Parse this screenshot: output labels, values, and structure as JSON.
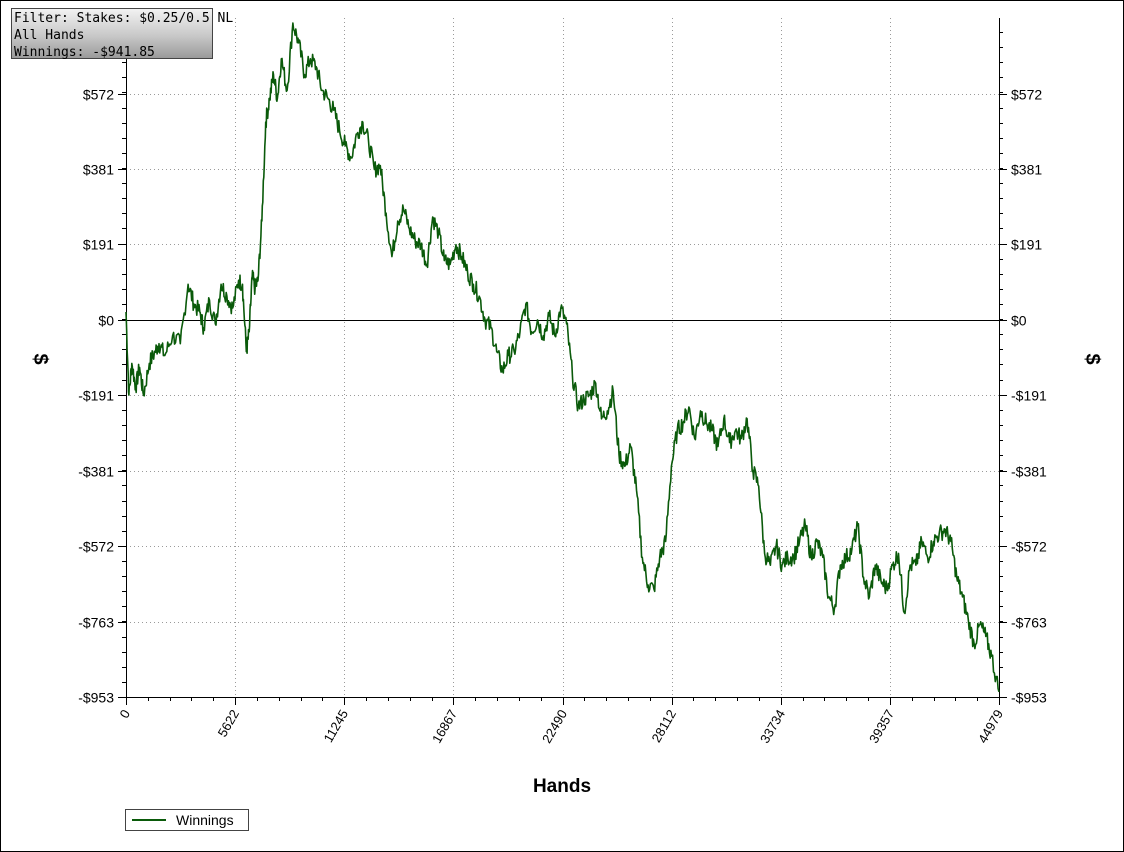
{
  "info": {
    "filter": "Filter: Stakes: $0.25/0.5 NL",
    "hands": "All Hands",
    "winnings": "Winnings: -$941.85"
  },
  "colors": {
    "series": "#0a5a0a",
    "grid": "#9a9a9a",
    "axis": "#000000"
  },
  "chart_data": {
    "type": "line",
    "title": "",
    "xlabel": "Hands",
    "ylabel": "$",
    "xlim": [
      0,
      44979
    ],
    "ylim": [
      -953,
      763
    ],
    "x_ticks": [
      0,
      5622,
      11245,
      16867,
      22490,
      28112,
      33734,
      39357,
      44979
    ],
    "y_ticks": [
      572,
      381,
      191,
      0,
      -191,
      -381,
      -572,
      -763,
      -953
    ],
    "y_tick_labels": [
      "$572",
      "$381",
      "$191",
      "$0",
      "-$191",
      "-$381",
      "-$572",
      "-$763",
      "-$953"
    ],
    "grid": true,
    "legend": "bottom-left",
    "series": [
      {
        "name": "Winnings",
        "x": [
          0,
          150,
          300,
          500,
          700,
          900,
          1200,
          1500,
          1700,
          2000,
          2400,
          2800,
          3200,
          3500,
          3800,
          4000,
          4300,
          4600,
          4900,
          5200,
          5500,
          5800,
          6000,
          6200,
          6350,
          6500,
          6650,
          6800,
          7000,
          7200,
          7400,
          7600,
          7800,
          8000,
          8300,
          8600,
          8900,
          9200,
          9500,
          9800,
          10100,
          10400,
          10700,
          11000,
          11300,
          11600,
          11900,
          12200,
          12500,
          12800,
          13100,
          13400,
          13700,
          14000,
          14300,
          14600,
          14900,
          15200,
          15500,
          15800,
          16100,
          16400,
          16700,
          17000,
          17300,
          17600,
          17900,
          18200,
          18500,
          18800,
          19100,
          19400,
          19700,
          20000,
          20300,
          20600,
          20900,
          21200,
          21500,
          21800,
          22100,
          22400,
          22700,
          23000,
          23300,
          23600,
          23900,
          24200,
          24500,
          24800,
          25100,
          25400,
          25700,
          26000,
          26300,
          26600,
          26900,
          27200,
          27500,
          27800,
          28100,
          28400,
          28700,
          29000,
          29300,
          29600,
          29900,
          30200,
          30500,
          30800,
          31100,
          31400,
          31700,
          32000,
          32300,
          32600,
          32900,
          33200,
          33500,
          33800,
          34100,
          34400,
          34700,
          35000,
          35300,
          35600,
          35900,
          36200,
          36500,
          36800,
          37100,
          37400,
          37700,
          38000,
          38300,
          38600,
          38900,
          39200,
          39500,
          39800,
          40100,
          40400,
          40700,
          41000,
          41300,
          41600,
          41900,
          42200,
          42500,
          42800,
          43100,
          43400,
          43700,
          44000,
          44300,
          44600,
          44979
        ],
        "values": [
          20,
          -190,
          -110,
          -170,
          -120,
          -190,
          -110,
          -80,
          -60,
          -90,
          -40,
          -60,
          90,
          40,
          20,
          -20,
          50,
          -10,
          90,
          60,
          30,
          100,
          90,
          -80,
          -30,
          110,
          80,
          100,
          250,
          500,
          560,
          620,
          560,
          660,
          580,
          750,
          700,
          620,
          660,
          640,
          580,
          560,
          530,
          480,
          440,
          410,
          470,
          500,
          450,
          380,
          390,
          270,
          160,
          250,
          280,
          230,
          200,
          190,
          140,
          260,
          220,
          150,
          140,
          190,
          160,
          120,
          90,
          60,
          0,
          -20,
          -80,
          -130,
          -90,
          -80,
          -30,
          40,
          -30,
          0,
          -40,
          10,
          -40,
          30,
          -10,
          -140,
          -220,
          -200,
          -190,
          -160,
          -250,
          -230,
          -180,
          -340,
          -370,
          -320,
          -430,
          -600,
          -670,
          -680,
          -600,
          -560,
          -370,
          -280,
          -260,
          -220,
          -300,
          -230,
          -260,
          -280,
          -320,
          -250,
          -310,
          -280,
          -300,
          -250,
          -380,
          -420,
          -590,
          -620,
          -570,
          -620,
          -600,
          -600,
          -560,
          -520,
          -600,
          -560,
          -600,
          -700,
          -730,
          -620,
          -600,
          -580,
          -520,
          -650,
          -700,
          -620,
          -660,
          -680,
          -620,
          -590,
          -740,
          -620,
          -620,
          -560,
          -600,
          -560,
          -540,
          -530,
          -560,
          -650,
          -700,
          -760,
          -820,
          -770,
          -800,
          -850,
          -940
        ]
      }
    ]
  }
}
